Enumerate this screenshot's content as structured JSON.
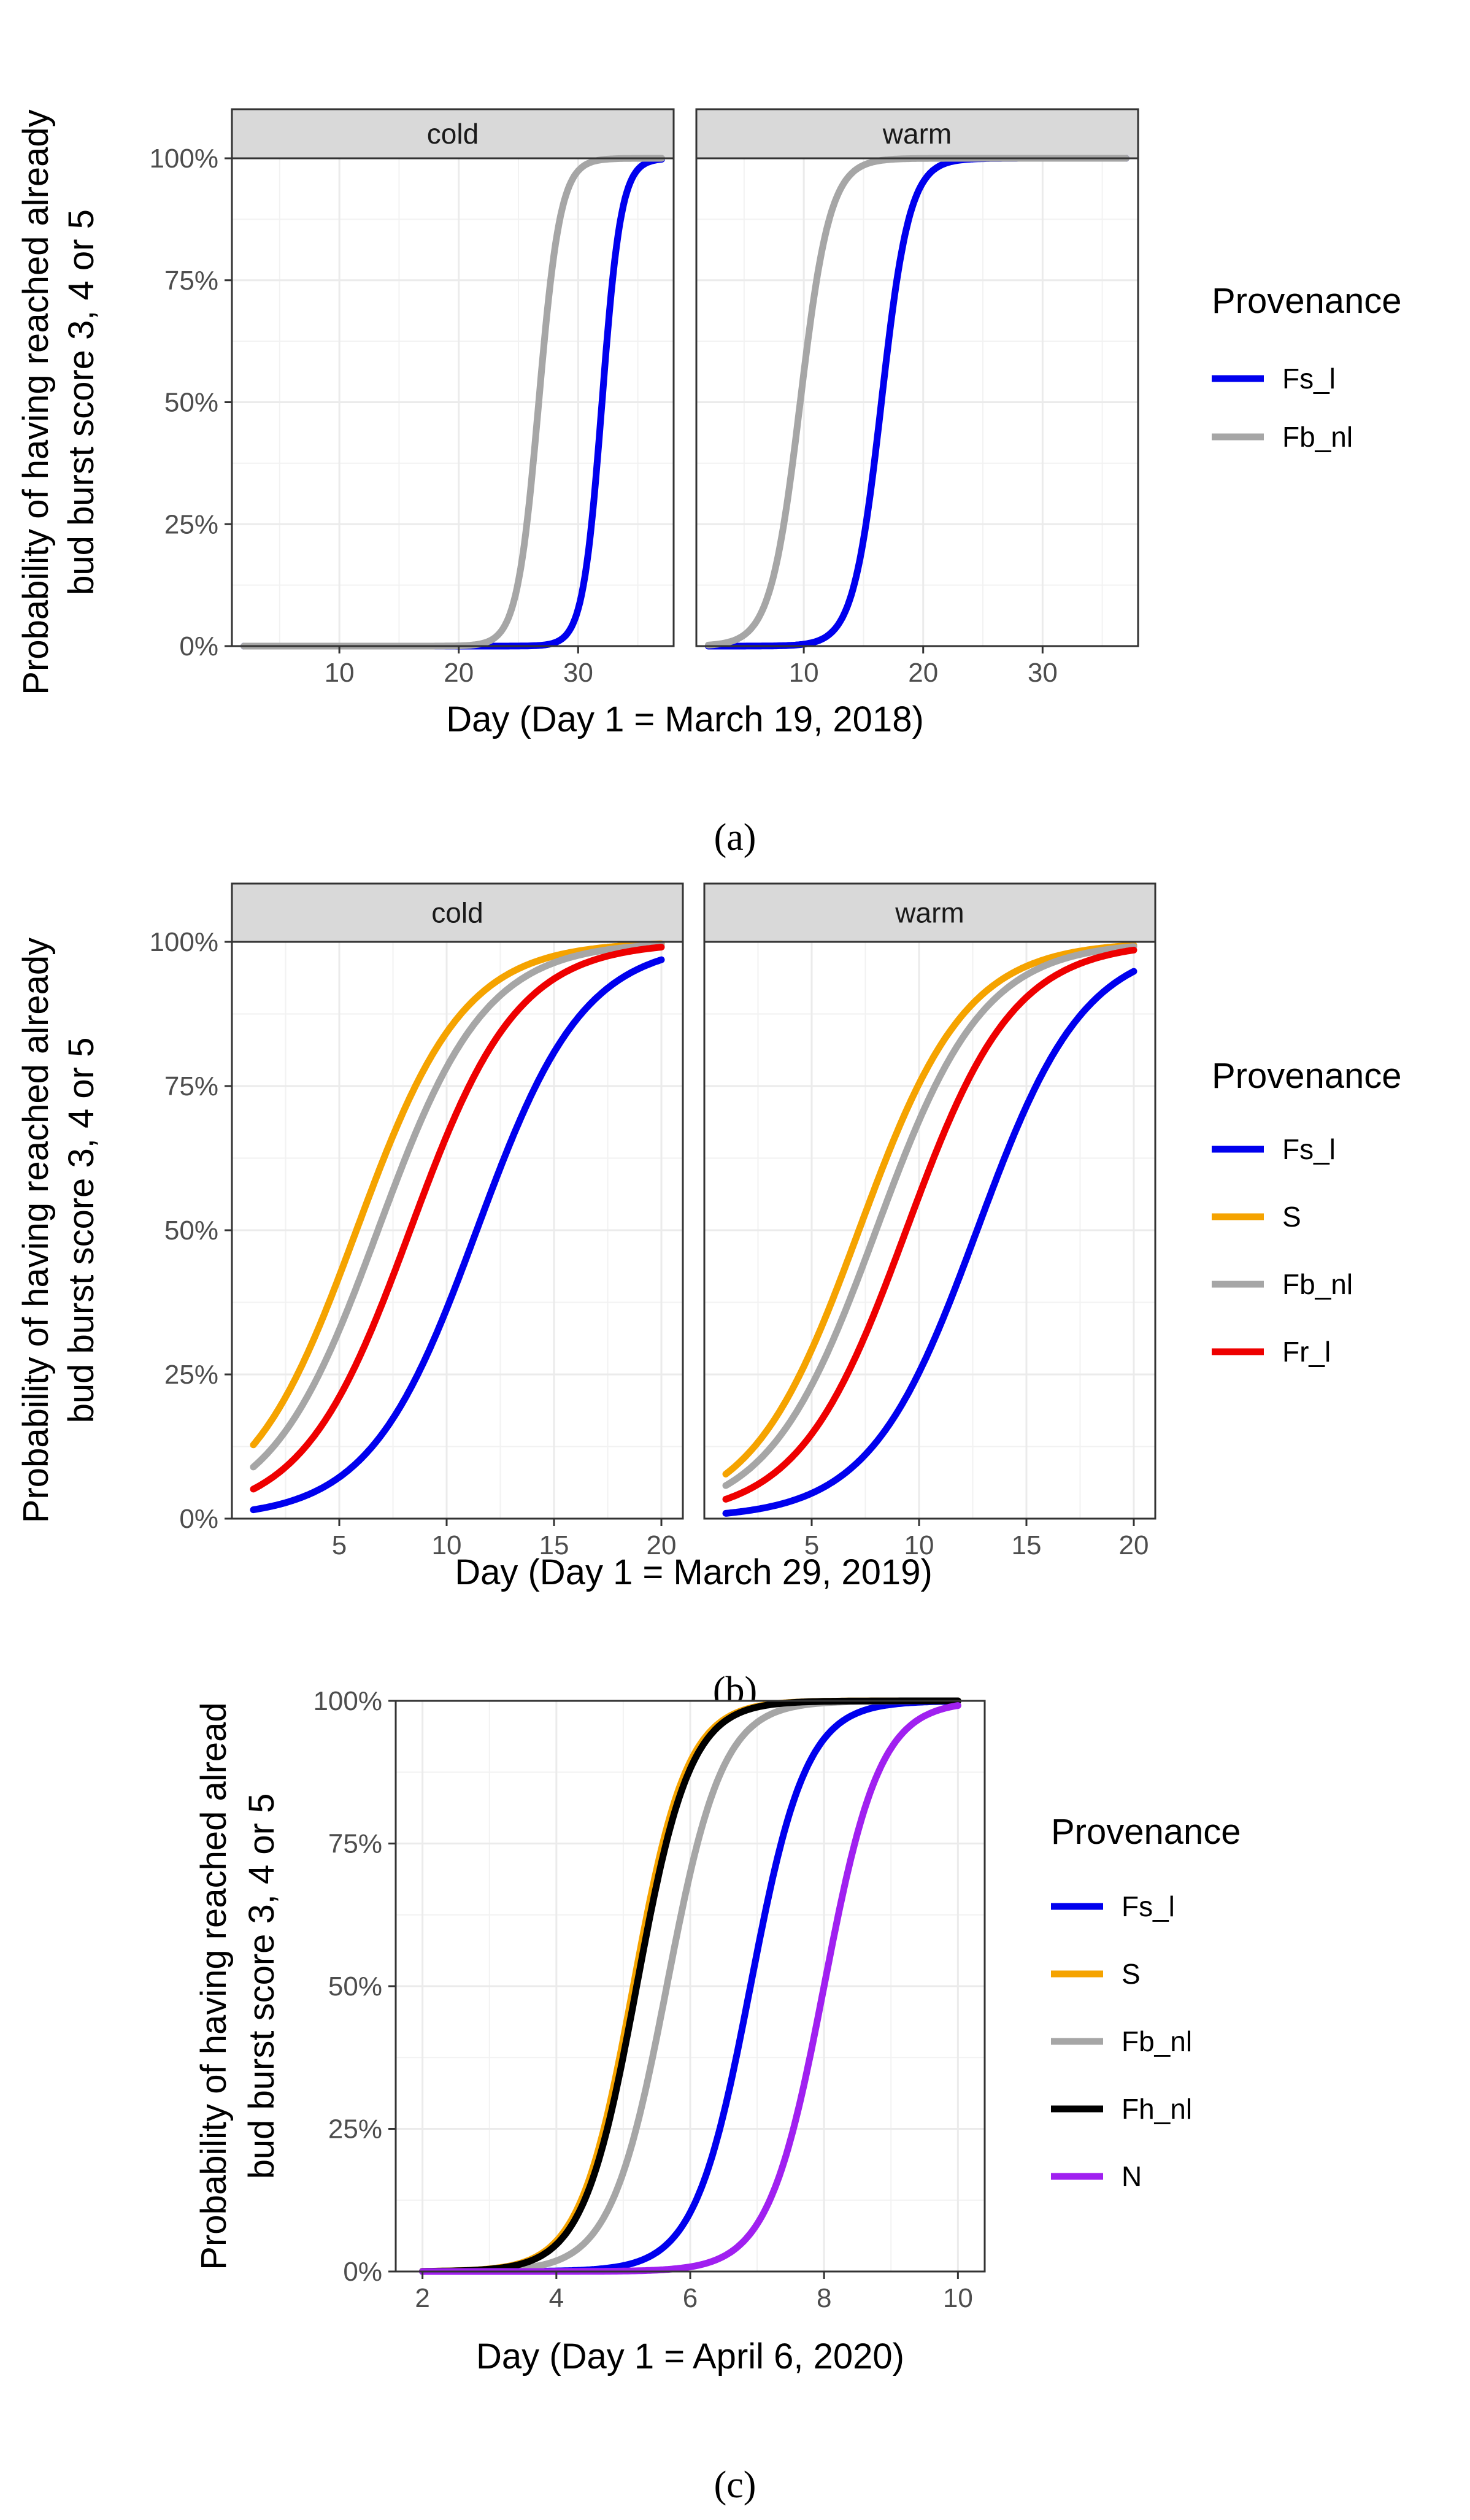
{
  "chart_data": [
    {
      "id": "a",
      "type": "line",
      "caption": "(a)",
      "xlabel": "Day (Day 1 = March 19, 2018)",
      "ylabel": [
        "Probability of having reached already",
        "bud burst score 3, 4 or 5"
      ],
      "xlim": [
        1,
        38
      ],
      "xticks": [
        10,
        20,
        30
      ],
      "ylim": [
        0,
        1
      ],
      "yticks": [
        0,
        0.25,
        0.5,
        0.75,
        1
      ],
      "ytick_labels": [
        "0%",
        "25%",
        "50%",
        "75%",
        "100%"
      ],
      "x_range": [
        2,
        37
      ],
      "legend": {
        "title": "Provenance",
        "position": "right"
      },
      "facets": [
        {
          "label": "cold",
          "series": [
            {
              "name": "Fs_l",
              "color": "#0000ee",
              "x0": 32.0,
              "slope": 1.25
            },
            {
              "name": "Fb_nl",
              "color": "#a6a6a6",
              "x0": 26.7,
              "slope": 1.1
            }
          ]
        },
        {
          "label": "warm",
          "series": [
            {
              "name": "Fs_l",
              "color": "#0000ee",
              "x0": 16.5,
              "slope": 0.85
            },
            {
              "name": "Fb_nl",
              "color": "#a6a6a6",
              "x0": 9.7,
              "slope": 0.8
            }
          ]
        }
      ]
    },
    {
      "id": "b",
      "type": "line",
      "caption": "(b)",
      "xlabel": "Day (Day 1 = March 29, 2019)",
      "ylabel": [
        "Probability of having reached already",
        "bud burst score 3, 4 or 5"
      ],
      "xlim": [
        0,
        21
      ],
      "xticks": [
        5,
        10,
        15,
        20
      ],
      "ylim": [
        0,
        1
      ],
      "yticks": [
        0,
        0.25,
        0.5,
        0.75,
        1
      ],
      "ytick_labels": [
        "0%",
        "25%",
        "50%",
        "75%",
        "100%"
      ],
      "x_range": [
        1,
        20
      ],
      "legend": {
        "title": "Provenance",
        "position": "right"
      },
      "facets": [
        {
          "label": "cold",
          "series": [
            {
              "name": "Fs_l",
              "color": "#0000ee",
              "x0": 11.4,
              "slope": 0.4
            },
            {
              "name": "S",
              "color": "#f5a300",
              "x0": 5.8,
              "slope": 0.4
            },
            {
              "name": "Fb_nl",
              "color": "#a6a6a6",
              "x0": 6.8,
              "slope": 0.4
            },
            {
              "name": "Fr_l",
              "color": "#ee0000",
              "x0": 8.3,
              "slope": 0.4
            }
          ]
        },
        {
          "label": "warm",
          "series": [
            {
              "name": "Fs_l",
              "color": "#0000ee",
              "x0": 12.7,
              "slope": 0.4
            },
            {
              "name": "S",
              "color": "#f5a300",
              "x0": 7.2,
              "slope": 0.4
            },
            {
              "name": "Fb_nl",
              "color": "#a6a6a6",
              "x0": 8.0,
              "slope": 0.4
            },
            {
              "name": "Fr_l",
              "color": "#ee0000",
              "x0": 9.4,
              "slope": 0.4
            }
          ]
        }
      ]
    },
    {
      "id": "c",
      "type": "line",
      "caption": "(c)",
      "xlabel": "Day (Day 1 = April 6, 2020)",
      "ylabel": [
        "Probability of having reached alread",
        "bud burst score 3, 4 or 5"
      ],
      "xlim": [
        1.6,
        10.4
      ],
      "xticks": [
        2,
        4,
        6,
        8,
        10
      ],
      "ylim": [
        0,
        1
      ],
      "yticks": [
        0,
        0.25,
        0.5,
        0.75,
        1
      ],
      "ytick_labels": [
        "0%",
        "25%",
        "50%",
        "75%",
        "100%"
      ],
      "x_range": [
        2,
        10
      ],
      "legend": {
        "title": "Provenance",
        "position": "right"
      },
      "facets": [
        {
          "label": "",
          "series": [
            {
              "name": "Fs_l",
              "color": "#0000ee",
              "x0": 6.9,
              "slope": 2.4
            },
            {
              "name": "S",
              "color": "#f5a300",
              "x0": 5.15,
              "slope": 2.5
            },
            {
              "name": "Fb_nl",
              "color": "#a6a6a6",
              "x0": 5.65,
              "slope": 2.4
            },
            {
              "name": "Fh_nl",
              "color": "#000000",
              "x0": 5.2,
              "slope": 2.5
            },
            {
              "name": "N",
              "color": "#a020f0",
              "x0": 8.0,
              "slope": 2.4
            }
          ]
        }
      ]
    }
  ]
}
